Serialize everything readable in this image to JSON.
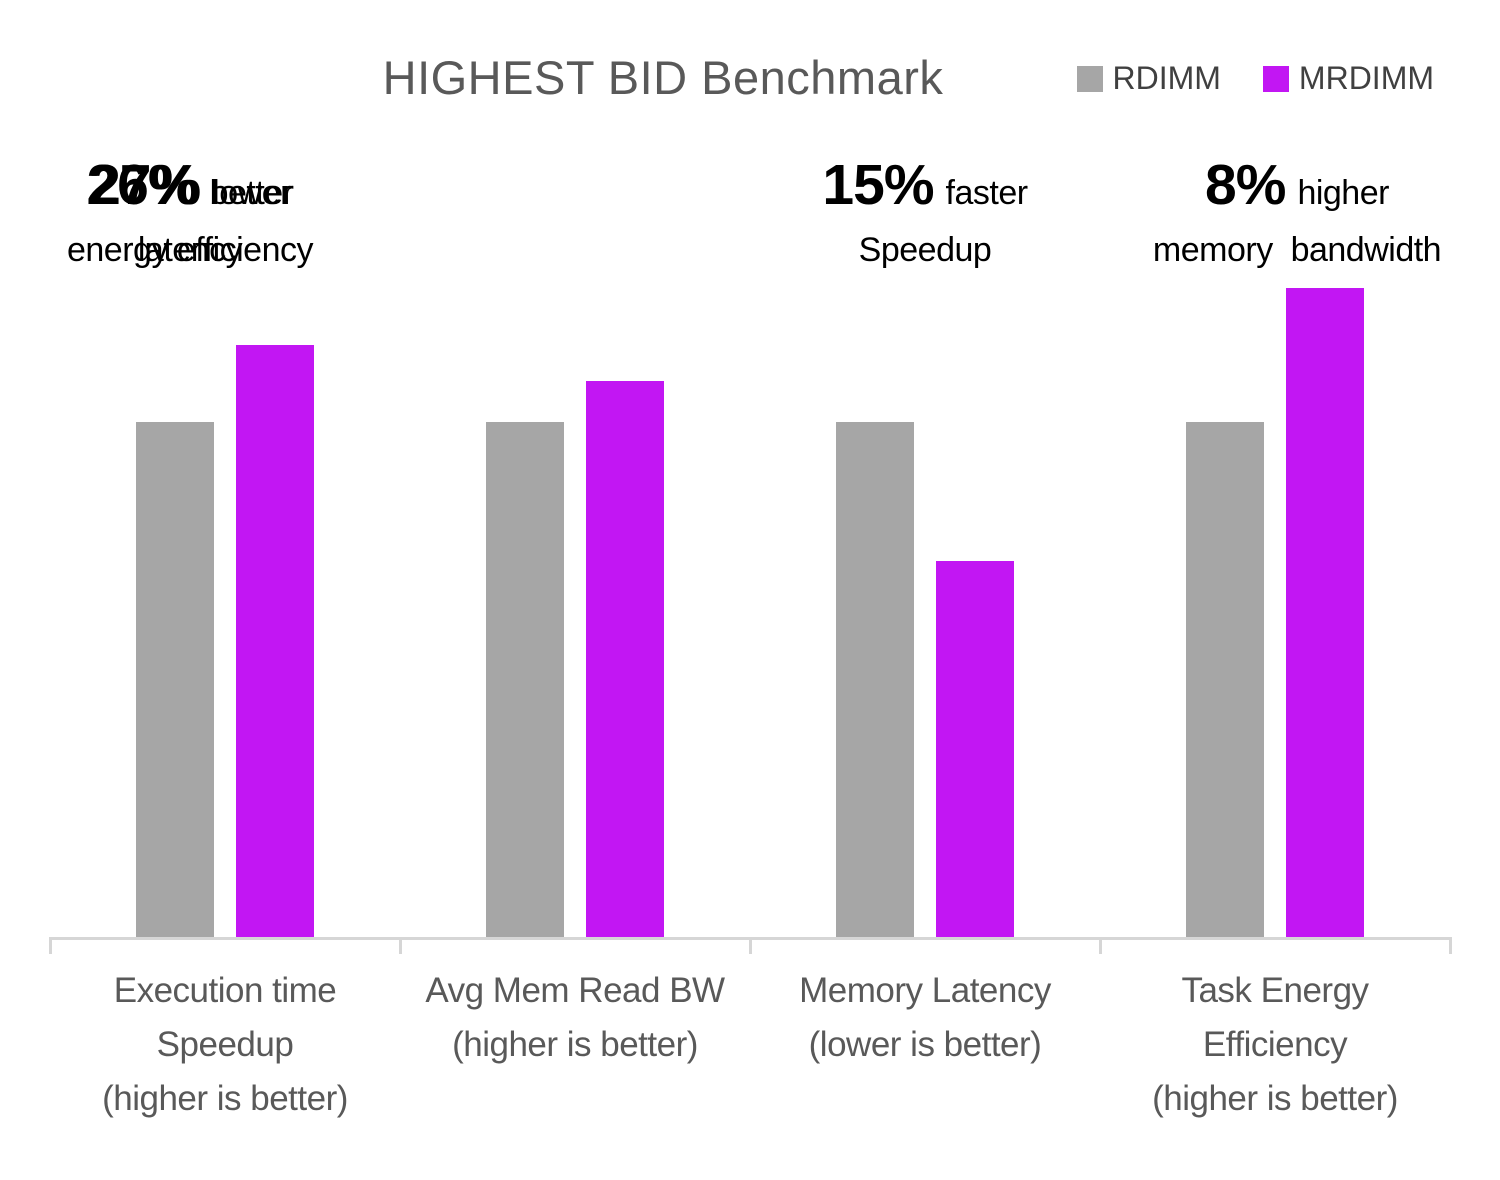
{
  "title": "HIGHEST BID Benchmark",
  "legend": [
    {
      "label": "RDIMM",
      "color": "#a6a6a6"
    },
    {
      "label": "MRDIMM",
      "color": "#c216f3"
    }
  ],
  "annotations": [
    {
      "stat": "15%",
      "qualifier": "faster",
      "line2": "Speedup"
    },
    {
      "stat": "8%",
      "qualifier": "higher",
      "line2": "memory  bandwidth"
    },
    {
      "stat": "27%",
      "qualifier": "lower",
      "line2": "latency"
    },
    {
      "stat": "26%",
      "qualifier": "better",
      "line2": "energy efficiency"
    }
  ],
  "chart_data": {
    "type": "bar",
    "title": "HIGHEST BID Benchmark",
    "categories": [
      "Execution time Speedup (higher is better)",
      "Avg Mem Read BW (higher is better)",
      "Memory Latency (lower is better)",
      "Task Energy Efficiency (higher is better)"
    ],
    "category_lines": [
      [
        "Execution time",
        "Speedup",
        "(higher is better)"
      ],
      [
        "Avg Mem Read BW",
        "(higher is better)"
      ],
      [
        "Memory Latency",
        "(lower is better)"
      ],
      [
        "Task Energy",
        "Efficiency",
        "(higher is better)"
      ]
    ],
    "series": [
      {
        "name": "RDIMM",
        "color": "#a6a6a6",
        "values": [
          100,
          100,
          100,
          100
        ]
      },
      {
        "name": "MRDIMM",
        "color": "#c216f3",
        "values": [
          115,
          108,
          73,
          126
        ]
      }
    ],
    "units": "relative performance, normalized to RDIMM = 100 (no numeric axis shown)",
    "callouts": [
      "15% faster Speedup",
      "8% higher memory bandwidth",
      "27% lower latency",
      "26% better energy efficiency"
    ],
    "ylim": [
      0,
      130
    ],
    "grid": false,
    "legend_position": "top-right",
    "colors": {
      "axis_line": "#d6d6d6",
      "title_text": "#595959",
      "label_text": "#595959",
      "legend_text": "#404040",
      "annotation_text": "#000000"
    }
  }
}
